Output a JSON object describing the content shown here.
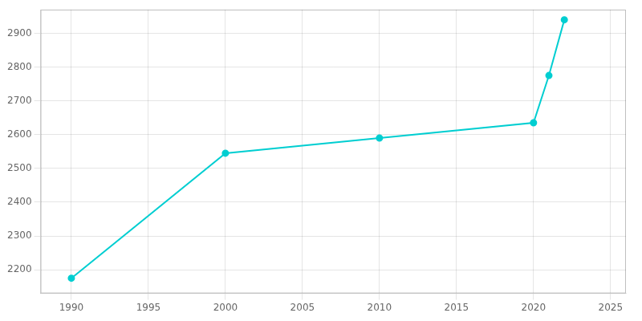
{
  "chart_data": {
    "type": "line",
    "x": [
      1990,
      2000,
      2010,
      2020,
      2021,
      2022
    ],
    "values": [
      2175,
      2545,
      2590,
      2635,
      2775,
      2940
    ],
    "color": "#00CED1",
    "marker": "circle",
    "xlim": [
      1988,
      2026
    ],
    "ylim": [
      2130,
      2970
    ],
    "xticks": [
      1990,
      1995,
      2000,
      2005,
      2010,
      2015,
      2020,
      2025
    ],
    "yticks": [
      2200,
      2300,
      2400,
      2500,
      2600,
      2700,
      2800,
      2900
    ],
    "grid": true
  }
}
